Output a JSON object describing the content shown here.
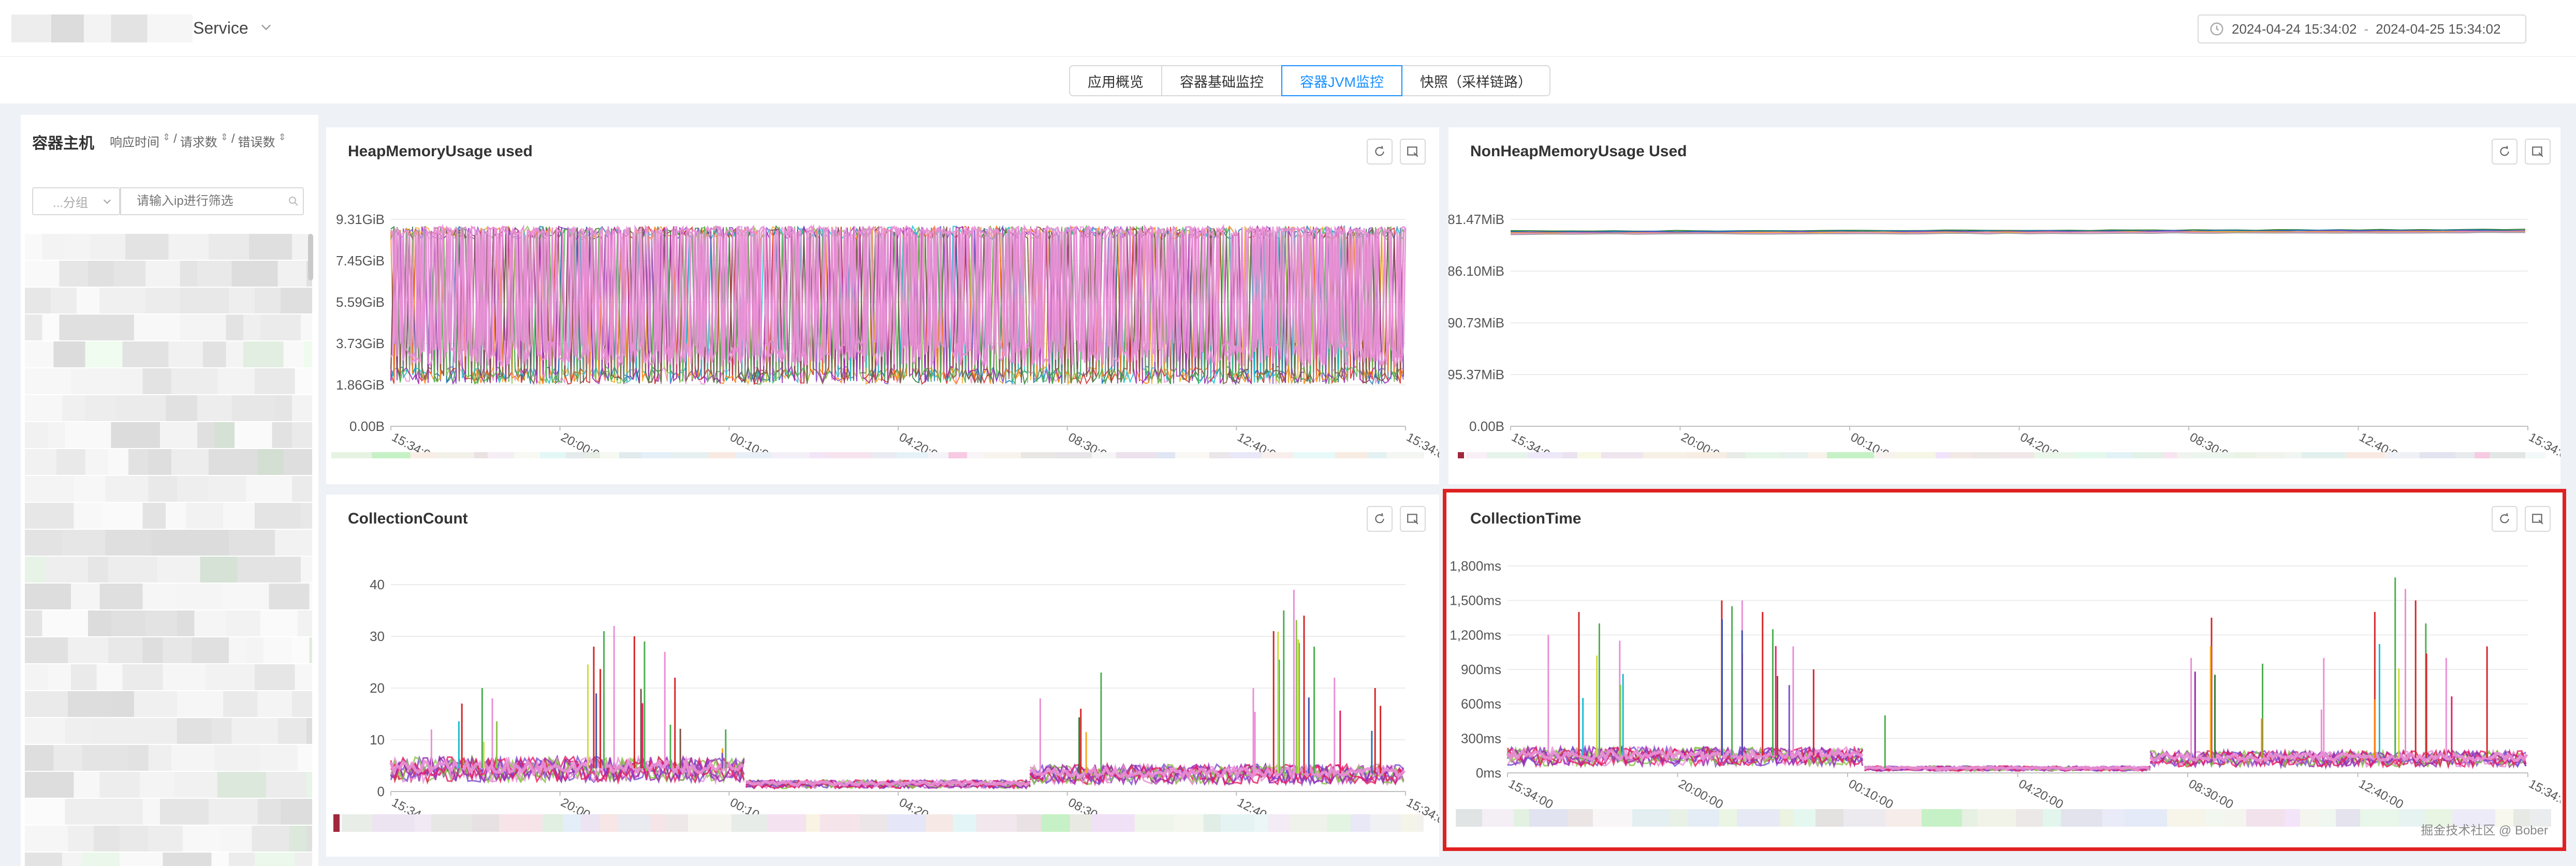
{
  "header": {
    "service_label": "Service",
    "time_range": {
      "start": "2024-04-24 15:34:02",
      "separator": "-",
      "end": "2024-04-25 15:34:02"
    }
  },
  "tabs": [
    {
      "label": "应用概览",
      "active": false
    },
    {
      "label": "容器基础监控",
      "active": false
    },
    {
      "label": "容器JVM监控",
      "active": true
    },
    {
      "label": "快照（采样链路）",
      "active": false
    }
  ],
  "sidebar": {
    "title": "容器主机",
    "sort_options": [
      "响应时间",
      "请求数",
      "错误数"
    ],
    "sort_separator": "/",
    "group_select": "...分组",
    "ip_placeholder": "请输入ip进行筛选"
  },
  "colors": {
    "accent": "#1890ff",
    "highlight": "#e02020",
    "series_main": "#e98fd6"
  },
  "panels": [
    {
      "id": "heap",
      "title": "HeapMemoryUsage used",
      "buttons": [
        "refresh-icon",
        "expand-chart-icon"
      ],
      "highlighted": false,
      "chart_data": {
        "type": "line",
        "title": "HeapMemoryUsage used",
        "y_ticks": [
          "9.31GiB",
          "7.45GiB",
          "5.59GiB",
          "3.73GiB",
          "1.86GiB",
          "0.00B"
        ],
        "x_ticks": [
          "15:34:00",
          "20:00:00",
          "00:10:00",
          "04:20:00",
          "08:30:00",
          "12:40:00",
          "15:34:00"
        ],
        "ylim": [
          0,
          9.31
        ],
        "series_summary": {
          "min_band": 1.9,
          "max_band": 9.0,
          "style": "dense oscillating multi-series"
        },
        "grid": true
      }
    },
    {
      "id": "nonheap",
      "title": "NonHeapMemoryUsage Used",
      "buttons": [
        "refresh-icon",
        "expand-chart-icon"
      ],
      "highlighted": false,
      "chart_data": {
        "type": "line",
        "title": "NonHeapMemoryUsage Used",
        "y_ticks": [
          "81.47MiB",
          "86.10MiB",
          "90.73MiB",
          "95.37MiB",
          "0.00B"
        ],
        "x_ticks": [
          "15:34:00",
          "20:00:00",
          "00:10:00",
          "04:20:00",
          "08:30:00",
          "12:40:00",
          "15:34:00"
        ],
        "series_summary": {
          "level": "flat near top gridline"
        },
        "grid": true
      }
    },
    {
      "id": "count",
      "title": "CollectionCount",
      "buttons": [
        "refresh-icon",
        "expand-chart-icon"
      ],
      "highlighted": false,
      "chart_data": {
        "type": "line",
        "title": "CollectionCount",
        "y_ticks": [
          "40",
          "30",
          "20",
          "10",
          "0"
        ],
        "x_ticks": [
          "15:34:00",
          "20:00:00",
          "00:10:00",
          "04:20:00",
          "08:30:00",
          "12:40:00",
          "15:34:00"
        ],
        "ylim": [
          0,
          40
        ],
        "baseline": [
          {
            "from": 0.0,
            "to": 0.35,
            "value": 4.5
          },
          {
            "from": 0.35,
            "to": 0.63,
            "value": 1.5
          },
          {
            "from": 0.63,
            "to": 1.0,
            "value": 3.5
          }
        ],
        "spikes": [
          {
            "x": 0.04,
            "y": 12
          },
          {
            "x": 0.07,
            "y": 17
          },
          {
            "x": 0.09,
            "y": 20
          },
          {
            "x": 0.1,
            "y": 18
          },
          {
            "x": 0.2,
            "y": 28
          },
          {
            "x": 0.21,
            "y": 31
          },
          {
            "x": 0.22,
            "y": 32
          },
          {
            "x": 0.24,
            "y": 30
          },
          {
            "x": 0.25,
            "y": 29
          },
          {
            "x": 0.27,
            "y": 27
          },
          {
            "x": 0.28,
            "y": 22
          },
          {
            "x": 0.33,
            "y": 12
          },
          {
            "x": 0.64,
            "y": 18
          },
          {
            "x": 0.68,
            "y": 16
          },
          {
            "x": 0.7,
            "y": 23
          },
          {
            "x": 0.85,
            "y": 20
          },
          {
            "x": 0.87,
            "y": 31
          },
          {
            "x": 0.88,
            "y": 35
          },
          {
            "x": 0.89,
            "y": 39
          },
          {
            "x": 0.9,
            "y": 34
          },
          {
            "x": 0.91,
            "y": 28
          },
          {
            "x": 0.93,
            "y": 22
          },
          {
            "x": 0.97,
            "y": 20
          }
        ],
        "grid": true
      }
    },
    {
      "id": "time",
      "title": "CollectionTime",
      "buttons": [
        "refresh-icon",
        "expand-chart-icon"
      ],
      "highlighted": true,
      "chart_data": {
        "type": "line",
        "title": "CollectionTime",
        "y_ticks": [
          "1,800ms",
          "1,500ms",
          "1,200ms",
          "900ms",
          "600ms",
          "300ms",
          "0ms"
        ],
        "x_ticks": [
          "15:34:00",
          "20:00:00",
          "00:10:00",
          "04:20:00",
          "08:30:00",
          "12:40:00",
          "15:34:00"
        ],
        "ylim": [
          0,
          1800
        ],
        "baseline": [
          {
            "from": 0.0,
            "to": 0.35,
            "value": 150
          },
          {
            "from": 0.35,
            "to": 0.63,
            "value": 40
          },
          {
            "from": 0.63,
            "to": 1.0,
            "value": 130
          }
        ],
        "spikes": [
          {
            "x": 0.04,
            "y": 1200
          },
          {
            "x": 0.07,
            "y": 1400
          },
          {
            "x": 0.09,
            "y": 1300
          },
          {
            "x": 0.11,
            "y": 1150
          },
          {
            "x": 0.21,
            "y": 1500
          },
          {
            "x": 0.22,
            "y": 1450
          },
          {
            "x": 0.23,
            "y": 1500
          },
          {
            "x": 0.25,
            "y": 1400
          },
          {
            "x": 0.26,
            "y": 1250
          },
          {
            "x": 0.28,
            "y": 1100
          },
          {
            "x": 0.3,
            "y": 900
          },
          {
            "x": 0.37,
            "y": 500
          },
          {
            "x": 0.67,
            "y": 1000
          },
          {
            "x": 0.69,
            "y": 1350
          },
          {
            "x": 0.74,
            "y": 950
          },
          {
            "x": 0.8,
            "y": 1000
          },
          {
            "x": 0.85,
            "y": 1400
          },
          {
            "x": 0.87,
            "y": 1700
          },
          {
            "x": 0.88,
            "y": 1600
          },
          {
            "x": 0.89,
            "y": 1500
          },
          {
            "x": 0.9,
            "y": 1300
          },
          {
            "x": 0.92,
            "y": 1000
          },
          {
            "x": 0.96,
            "y": 1100
          }
        ],
        "grid": true
      }
    }
  ],
  "watermark": "掘金技术社区 @ Bober"
}
